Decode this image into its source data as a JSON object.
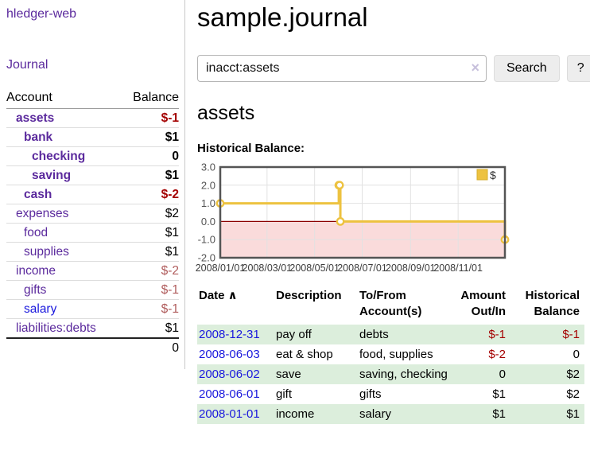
{
  "app": {
    "title": "hledger-web"
  },
  "palette": {
    "purple_link": "#5b2a9d",
    "blue_link": "#1a18dd",
    "negative_dark": "#a40000",
    "negative_soft": "#b05c5c",
    "row_green": "#dceedc",
    "row_border": "#dddddd",
    "divider": "#c8c8c8",
    "button_bg": "#ededed",
    "button_border": "#dcdcdc",
    "input_border": "#b5b5b5",
    "clear_icon": "#c7c0dc",
    "chart_line_gold": "#edc240",
    "chart_gold_dark": "#d6ad2c",
    "chart_fill_pink": "#fadbdb",
    "chart_zero_red": "#8b0000",
    "chart_border": "#545454",
    "chart_grid": "#e2e2e2",
    "tick_text": "#545454"
  },
  "sidebar": {
    "journal_label": "Journal",
    "accounts_table": {
      "headers": [
        "Account",
        "Balance"
      ],
      "rows": [
        {
          "name": "assets",
          "balance": "$-1",
          "depth": 1,
          "bold": true
        },
        {
          "name": "bank",
          "balance": "$1",
          "depth": 2,
          "bold": true
        },
        {
          "name": "checking",
          "balance": "0",
          "depth": 3,
          "bold": true
        },
        {
          "name": "saving",
          "balance": "$1",
          "depth": 3,
          "bold": true
        },
        {
          "name": "cash",
          "balance": "$-2",
          "depth": 2,
          "bold": true
        },
        {
          "name": "expenses",
          "balance": "$2",
          "depth": 1,
          "bold": false
        },
        {
          "name": "food",
          "balance": "$1",
          "depth": 2,
          "bold": false
        },
        {
          "name": "supplies",
          "balance": "$1",
          "depth": 2,
          "bold": false
        },
        {
          "name": "income",
          "balance": "$-2",
          "depth": 1,
          "bold": false
        },
        {
          "name": "gifts",
          "balance": "$-1",
          "depth": 2,
          "bold": false
        },
        {
          "name": "salary",
          "balance": "$-1",
          "depth": 2,
          "bold": false,
          "link_style": "blue"
        },
        {
          "name": "liabilities:debts",
          "balance": "$1",
          "depth": 1,
          "bold": false
        }
      ],
      "total": "0"
    }
  },
  "main": {
    "title": "sample.journal",
    "search": {
      "value": "inacct:assets",
      "clear_icon": "×",
      "button_label": "Search",
      "help_label": "?"
    },
    "account_heading": "assets",
    "chart_label": "Historical Balance:"
  },
  "chart_data": {
    "type": "line",
    "style": "step-after",
    "title": "Historical Balance:",
    "series": [
      {
        "name": "$",
        "color": "#edc240",
        "points": [
          [
            "2008-01-01",
            1
          ],
          [
            "2008-06-01",
            2
          ],
          [
            "2008-06-02",
            2
          ],
          [
            "2008-06-03",
            0
          ],
          [
            "2008-12-31",
            -1
          ]
        ]
      }
    ],
    "x_range": [
      "2008-01-01",
      "2008-12-31"
    ],
    "ylim": [
      -2,
      3
    ],
    "y_ticks": [
      3.0,
      2.0,
      1.0,
      0.0,
      -1.0,
      -2.0
    ],
    "x_ticks": [
      "2008/01/01",
      "2008/03/01",
      "2008/05/01",
      "2008/07/01",
      "2008/09/01",
      "2008/11/01"
    ],
    "legend": {
      "position": "top-right",
      "entries": [
        "$"
      ]
    },
    "grid": true,
    "negative_region_highlight": true
  },
  "register": {
    "headers": [
      "Date",
      "Description",
      "To/From Account(s)",
      "Amount Out/In",
      "Historical Balance"
    ],
    "sort_icon": "∧",
    "rows": [
      {
        "date": "2008-12-31",
        "description": "pay off",
        "accounts": "debts",
        "amount": "$-1",
        "balance": "$-1"
      },
      {
        "date": "2008-06-03",
        "description": "eat & shop",
        "accounts": "food, supplies",
        "amount": "$-2",
        "balance": "0"
      },
      {
        "date": "2008-06-02",
        "description": "save",
        "accounts": "saving, checking",
        "amount": "0",
        "balance": "$2"
      },
      {
        "date": "2008-06-01",
        "description": "gift",
        "accounts": "gifts",
        "amount": "$1",
        "balance": "$2"
      },
      {
        "date": "2008-01-01",
        "description": "income",
        "accounts": "salary",
        "amount": "$1",
        "balance": "$1"
      }
    ]
  }
}
